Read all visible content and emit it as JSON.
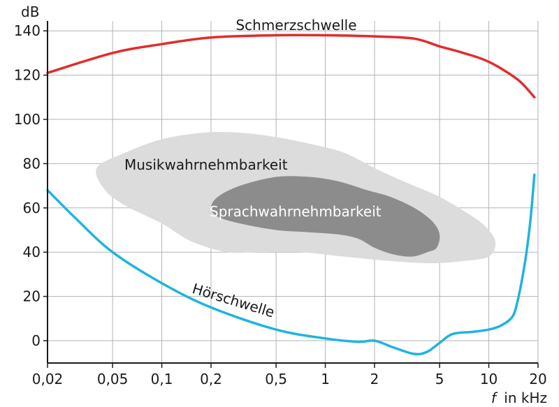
{
  "chart_data": {
    "type": "line",
    "title": "",
    "x_scale": "log",
    "grid": true,
    "xlim": [
      0.02,
      20
    ],
    "ylim": [
      -10,
      145
    ],
    "y_unit": "dB",
    "x_unit_symbol": "f",
    "x_unit_text": "in kHz",
    "x_ticks": [
      0.02,
      0.05,
      0.1,
      0.2,
      0.5,
      1,
      2,
      5,
      10,
      20
    ],
    "x_tick_labels": [
      "0,02",
      "0,05",
      "0,1",
      "0,2",
      "0,5",
      "1",
      "2",
      "5",
      "10",
      "20"
    ],
    "y_ticks": [
      0,
      20,
      40,
      60,
      80,
      100,
      120,
      140
    ],
    "y_tick_labels": [
      "0",
      "20",
      "40",
      "60",
      "80",
      "100",
      "120",
      "140"
    ],
    "series": [
      {
        "name": "Schmerzschwelle",
        "color": "#e32b2b",
        "x": [
          0.02,
          0.05,
          0.1,
          0.2,
          0.5,
          1,
          2,
          3.5,
          5,
          7,
          10,
          15,
          19
        ],
        "y": [
          121,
          130,
          134,
          137,
          138,
          138,
          137.5,
          136.5,
          133,
          130,
          126,
          118,
          110
        ]
      },
      {
        "name": "Hörschwelle",
        "color": "#1fb4de",
        "x": [
          0.02,
          0.03,
          0.05,
          0.1,
          0.2,
          0.5,
          1,
          1.6,
          2,
          2.6,
          3.5,
          4.2,
          5,
          6,
          8,
          10,
          12,
          14,
          15,
          16,
          17,
          18,
          19
        ],
        "y": [
          68,
          55,
          40,
          26,
          15,
          5,
          1,
          -0.5,
          0,
          -3,
          -6,
          -5,
          -1,
          3,
          4,
          5,
          7,
          11,
          18,
          28,
          40,
          55,
          75
        ]
      }
    ],
    "regions": [
      {
        "name": "Musikwahrnehmbarkeit",
        "fill": "#dcdcdc",
        "x": [
          0.04,
          0.06,
          0.1,
          0.18,
          0.3,
          0.5,
          0.8,
          1.3,
          2,
          3,
          5,
          8,
          10,
          11,
          10,
          7,
          4.5,
          2.5,
          1.3,
          0.7,
          0.4,
          0.25,
          0.15,
          0.1,
          0.06,
          0.045
        ],
        "y": [
          78,
          85,
          91,
          94,
          94,
          92,
          89,
          85,
          78,
          72,
          65,
          56,
          50,
          44,
          38,
          36,
          35,
          36,
          38,
          40,
          40,
          40,
          45,
          53,
          61,
          68
        ]
      },
      {
        "name": "Sprachwahrnehmbarkeit",
        "fill": "#8c8c8c",
        "label_color": "#ffffff",
        "x": [
          0.22,
          0.3,
          0.5,
          0.8,
          1.2,
          1.8,
          2.5,
          3.5,
          4.5,
          5,
          4.8,
          4.2,
          3.4,
          2.6,
          2.0,
          1.6,
          1.2,
          0.8,
          0.5,
          0.3,
          0.22,
          0.2
        ],
        "y": [
          65,
          70,
          74,
          74,
          72,
          68,
          65,
          60,
          54,
          48,
          42,
          40,
          38,
          39,
          42,
          46,
          48,
          49,
          50,
          53,
          56,
          60
        ]
      }
    ]
  }
}
